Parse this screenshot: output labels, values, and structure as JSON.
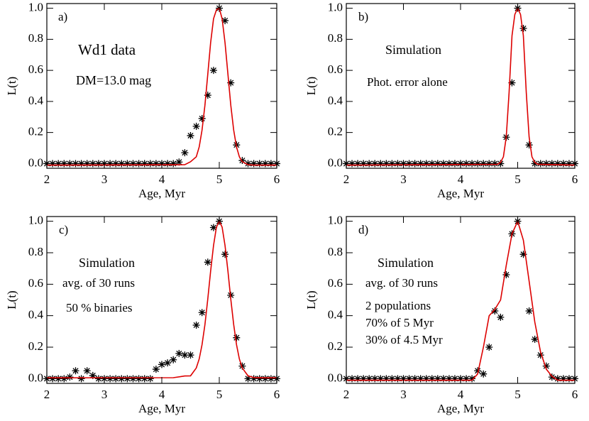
{
  "chart_data": [
    {
      "type": "scatter",
      "label": "a)",
      "annotations": [
        "Wd1 data",
        "DM=13.0 mag"
      ],
      "xlabel": "Age, Myr",
      "ylabel": "L(t)",
      "xlim": [
        2,
        6
      ],
      "ylim": [
        -0.03,
        1.03
      ],
      "xticks": [
        2,
        3,
        4,
        5,
        6
      ],
      "yticks": [
        {
          "value": 0,
          "label": "0.0"
        },
        0.2,
        0.4,
        0.6,
        0.8,
        {
          "value": 1,
          "label": "1.0"
        }
      ],
      "series": [
        {
          "style": "asterisk",
          "color": "#000000",
          "x": [
            2.0,
            2.1,
            2.2,
            2.3,
            2.4,
            2.5,
            2.6,
            2.7,
            2.8,
            2.9,
            3.0,
            3.1,
            3.2,
            3.3,
            3.4,
            3.5,
            3.6,
            3.7,
            3.8,
            3.9,
            4.0,
            4.1,
            4.2,
            4.3,
            4.4,
            4.5,
            4.6,
            4.7,
            4.8,
            4.9,
            5.0,
            5.1,
            5.2,
            5.3,
            5.4,
            5.5,
            5.6,
            5.7,
            5.8,
            5.9,
            6.0
          ],
          "values": [
            0,
            0,
            0,
            0,
            0,
            0,
            0,
            0,
            0,
            0,
            0,
            0,
            0,
            0,
            0,
            0,
            0,
            0,
            0,
            0,
            0,
            0,
            0,
            0.01,
            0.07,
            0.18,
            0.24,
            0.29,
            0.44,
            0.6,
            1.0,
            0.92,
            0.52,
            0.12,
            0.02,
            0,
            0,
            0,
            0,
            0,
            0
          ]
        },
        {
          "style": "line",
          "color": "#dd0000",
          "x": [
            2,
            4.4,
            4.5,
            4.6,
            4.65,
            4.7,
            4.75,
            4.8,
            4.85,
            4.9,
            4.95,
            5.0,
            5.05,
            5.1,
            5.15,
            5.2,
            5.25,
            5.3,
            5.35,
            5.4,
            5.5,
            5.6,
            6
          ],
          "values": [
            -0.01,
            -0.007,
            0.012,
            0.044,
            0.107,
            0.216,
            0.376,
            0.575,
            0.778,
            0.932,
            0.99,
            1.0,
            0.932,
            0.778,
            0.575,
            0.376,
            0.216,
            0.107,
            0.044,
            0.012,
            -0.007,
            -0.01,
            -0.01
          ]
        }
      ]
    },
    {
      "type": "scatter",
      "label": "b)",
      "annotations": [
        "Simulation",
        "Phot. error alone"
      ],
      "xlabel": "Age, Myr",
      "ylabel": "L(t)",
      "xlim": [
        2,
        6
      ],
      "ylim": [
        -0.03,
        1.03
      ],
      "xticks": [
        2,
        3,
        4,
        5,
        6
      ],
      "yticks": [
        {
          "value": 0,
          "label": "0.0"
        },
        0.2,
        0.4,
        0.6,
        0.8,
        {
          "value": 1,
          "label": "1.0"
        }
      ],
      "series": [
        {
          "style": "asterisk",
          "color": "#000000",
          "x": [
            2.0,
            2.1,
            2.2,
            2.3,
            2.4,
            2.5,
            2.6,
            2.7,
            2.8,
            2.9,
            3.0,
            3.1,
            3.2,
            3.3,
            3.4,
            3.5,
            3.6,
            3.7,
            3.8,
            3.9,
            4.0,
            4.1,
            4.2,
            4.3,
            4.4,
            4.5,
            4.6,
            4.7,
            4.8,
            4.9,
            5.0,
            5.1,
            5.2,
            5.3,
            5.4,
            5.5,
            5.6,
            5.7,
            5.8,
            5.9,
            6.0
          ],
          "values": [
            0,
            0,
            0,
            0,
            0,
            0,
            0,
            0,
            0,
            0,
            0,
            0,
            0,
            0,
            0,
            0,
            0,
            0,
            0,
            0,
            0,
            0,
            0,
            0,
            0,
            0,
            0,
            0,
            0.17,
            0.52,
            1.0,
            0.87,
            0.12,
            0,
            0,
            0,
            0,
            0,
            0,
            0,
            0
          ]
        },
        {
          "style": "line",
          "color": "#dd0000",
          "x": [
            2,
            4.65,
            4.7,
            4.75,
            4.8,
            4.85,
            4.9,
            4.95,
            5.0,
            5.05,
            5.1,
            5.15,
            5.2,
            5.25,
            5.3,
            5.35,
            6
          ],
          "values": [
            -0.01,
            -0.005,
            0.008,
            0.044,
            0.172,
            0.458,
            0.823,
            0.96,
            1.0,
            0.96,
            0.823,
            0.458,
            0.172,
            0.044,
            0.008,
            -0.005,
            -0.01
          ]
        }
      ]
    },
    {
      "type": "scatter",
      "label": "c)",
      "annotations": [
        "Simulation",
        "avg. of 30 runs",
        "50 % binaries"
      ],
      "xlabel": "Age, Myr",
      "ylabel": "L(t)",
      "xlim": [
        2,
        6
      ],
      "ylim": [
        -0.03,
        1.03
      ],
      "xticks": [
        2,
        3,
        4,
        5,
        6
      ],
      "yticks": [
        {
          "value": 0,
          "label": "0.0"
        },
        0.2,
        0.4,
        0.6,
        0.8,
        {
          "value": 1,
          "label": "1.0"
        }
      ],
      "series": [
        {
          "style": "asterisk",
          "color": "#000000",
          "x": [
            2.0,
            2.1,
            2.2,
            2.3,
            2.4,
            2.5,
            2.6,
            2.7,
            2.8,
            2.9,
            3.0,
            3.1,
            3.2,
            3.3,
            3.4,
            3.5,
            3.6,
            3.7,
            3.8,
            3.9,
            4.0,
            4.1,
            4.2,
            4.3,
            4.4,
            4.5,
            4.6,
            4.7,
            4.8,
            4.9,
            5.0,
            5.1,
            5.2,
            5.3,
            5.4,
            5.5,
            5.6,
            5.7,
            5.8,
            5.9,
            6.0
          ],
          "values": [
            0,
            0,
            0,
            0,
            0.01,
            0.05,
            0,
            0.05,
            0.02,
            0,
            0,
            0,
            0,
            0,
            0,
            0,
            0,
            0,
            0,
            0.06,
            0.09,
            0.1,
            0.12,
            0.16,
            0.15,
            0.15,
            0.34,
            0.42,
            0.74,
            0.96,
            1.0,
            0.79,
            0.53,
            0.26,
            0.08,
            0,
            0,
            0,
            0,
            0,
            0
          ]
        },
        {
          "style": "line",
          "color": "#dd0000",
          "x": [
            2,
            4.2,
            4.4,
            4.5,
            4.6,
            4.65,
            4.7,
            4.75,
            4.8,
            4.85,
            4.9,
            4.95,
            5.0,
            5.05,
            5.1,
            5.15,
            5.2,
            5.25,
            5.3,
            5.35,
            5.4,
            5.5,
            5.6,
            5.8,
            6
          ],
          "values": [
            0.005,
            0.006,
            0.017,
            0.018,
            0.068,
            0.125,
            0.216,
            0.344,
            0.506,
            0.683,
            0.846,
            0.963,
            1.0,
            0.963,
            0.846,
            0.683,
            0.506,
            0.344,
            0.216,
            0.125,
            0.068,
            0.018,
            0.007,
            0.005,
            0.005
          ]
        }
      ]
    },
    {
      "type": "scatter",
      "label": "d)",
      "annotations": [
        "Simulation",
        "avg. of 30 runs",
        "2 populations",
        "70% of 5 Myr",
        "30% of 4.5 Myr"
      ],
      "xlabel": "Age, Myr",
      "ylabel": "L(t)",
      "xlim": [
        2,
        6
      ],
      "ylim": [
        -0.03,
        1.03
      ],
      "xticks": [
        2,
        3,
        4,
        5,
        6
      ],
      "yticks": [
        {
          "value": 0,
          "label": "0.0"
        },
        0.2,
        0.4,
        0.6,
        0.8,
        {
          "value": 1,
          "label": "1.0"
        }
      ],
      "series": [
        {
          "style": "asterisk",
          "color": "#000000",
          "x": [
            2.0,
            2.1,
            2.2,
            2.3,
            2.4,
            2.5,
            2.6,
            2.7,
            2.8,
            2.9,
            3.0,
            3.1,
            3.2,
            3.3,
            3.4,
            3.5,
            3.6,
            3.7,
            3.8,
            3.9,
            4.0,
            4.1,
            4.2,
            4.3,
            4.4,
            4.5,
            4.6,
            4.7,
            4.8,
            4.9,
            5.0,
            5.1,
            5.2,
            5.3,
            5.4,
            5.5,
            5.6,
            5.7,
            5.8,
            5.9,
            6.0
          ],
          "values": [
            0,
            0,
            0,
            0,
            0,
            0,
            0,
            0,
            0,
            0,
            0,
            0,
            0,
            0,
            0,
            0,
            0,
            0,
            0,
            0,
            0,
            0,
            0,
            0.05,
            0.03,
            0.2,
            0.43,
            0.39,
            0.66,
            0.92,
            1.0,
            0.79,
            0.43,
            0.25,
            0.15,
            0.08,
            0.01,
            0,
            0,
            0,
            0
          ]
        },
        {
          "style": "line",
          "color": "#dd0000",
          "x": [
            2,
            4.2,
            4.3,
            4.4,
            4.5,
            4.6,
            4.7,
            4.8,
            4.9,
            5.0,
            5.1,
            5.2,
            5.3,
            5.4,
            5.5,
            5.6,
            5.7,
            6
          ],
          "values": [
            -0.01,
            -0.01,
            0.03,
            0.2,
            0.4,
            0.44,
            0.5,
            0.72,
            0.92,
            1.0,
            0.88,
            0.62,
            0.36,
            0.17,
            0.06,
            0.015,
            -0.01,
            -0.01
          ]
        }
      ]
    }
  ]
}
